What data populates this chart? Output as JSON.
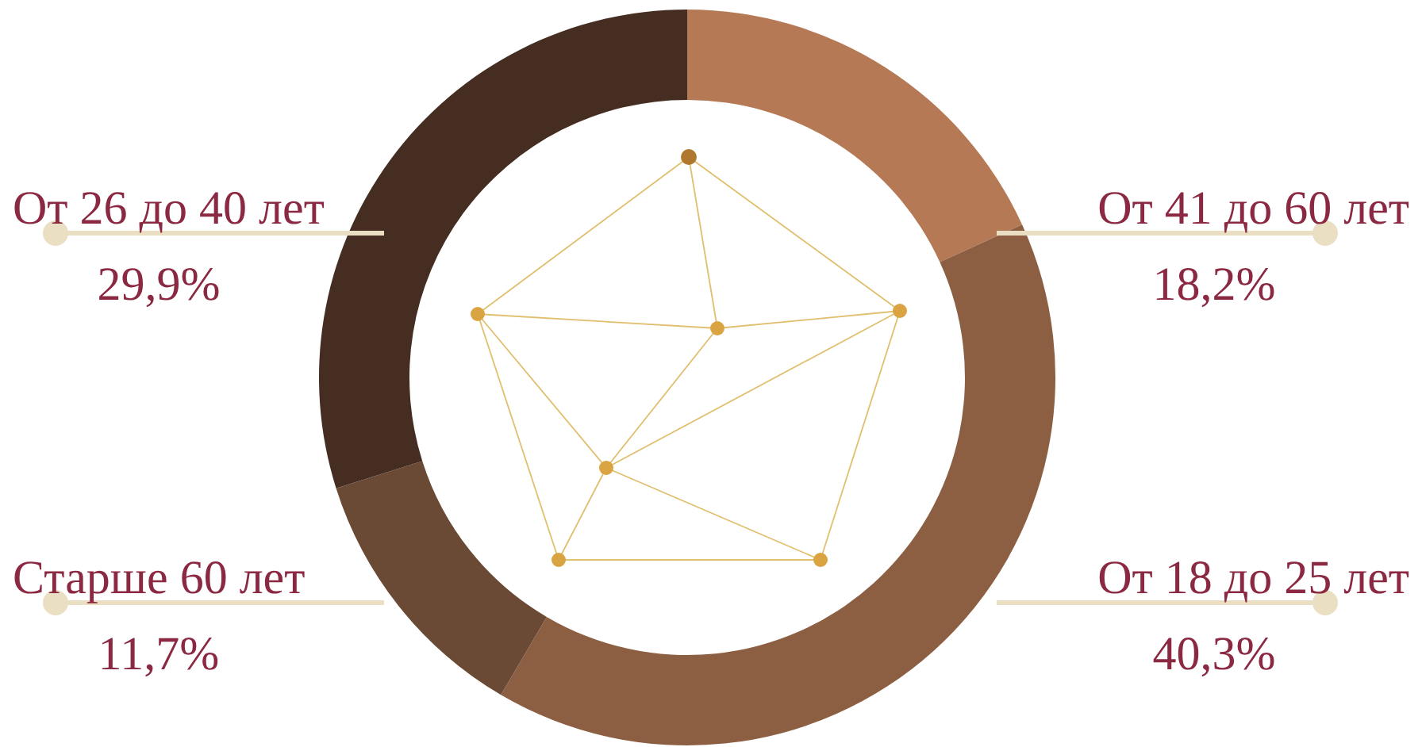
{
  "chart_data": {
    "type": "donut",
    "categories": [
      "От 41 до 60 лет",
      "От 18 до 25 лет",
      "Старше 60 лет",
      "От 26 до 40 лет"
    ],
    "values": [
      18.2,
      40.3,
      11.7,
      29.9
    ],
    "value_labels": [
      "18,2%",
      "40,3%",
      "11,7%",
      "29,9%"
    ],
    "colors": [
      "#b57a55",
      "#8c5f43",
      "#6b4a35",
      "#452e21"
    ],
    "data_labels": true
  }
}
